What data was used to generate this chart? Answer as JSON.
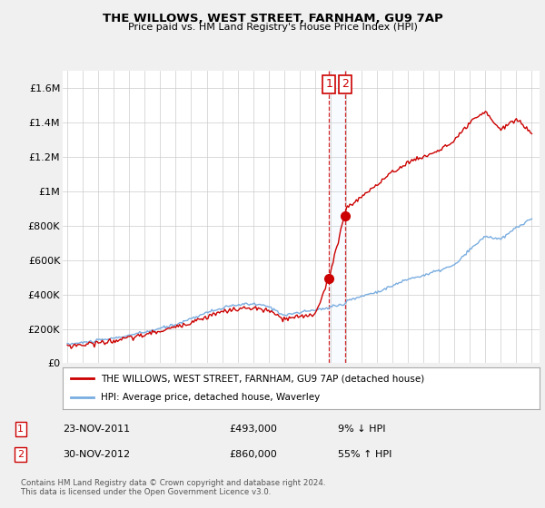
{
  "title": "THE WILLOWS, WEST STREET, FARNHAM, GU9 7AP",
  "subtitle": "Price paid vs. HM Land Registry's House Price Index (HPI)",
  "legend_line1": "THE WILLOWS, WEST STREET, FARNHAM, GU9 7AP (detached house)",
  "legend_line2": "HPI: Average price, detached house, Waverley",
  "transaction1_label": "1",
  "transaction1_date": "23-NOV-2011",
  "transaction1_price": "£493,000",
  "transaction1_hpi": "9% ↓ HPI",
  "transaction2_label": "2",
  "transaction2_date": "30-NOV-2012",
  "transaction2_price": "£860,000",
  "transaction2_hpi": "55% ↑ HPI",
  "footer": "Contains HM Land Registry data © Crown copyright and database right 2024.\nThis data is licensed under the Open Government Licence v3.0.",
  "red_color": "#cc0000",
  "blue_color": "#7aade0",
  "shade_color": "#ddeeff",
  "background_color": "#f0f0f0",
  "plot_bg_color": "#ffffff",
  "ylim": [
    0,
    1700000
  ],
  "yticks": [
    0,
    200000,
    400000,
    600000,
    800000,
    1000000,
    1200000,
    1400000,
    1600000
  ],
  "ytick_labels": [
    "£0",
    "£200K",
    "£400K",
    "£600K",
    "£800K",
    "£1M",
    "£1.2M",
    "£1.4M",
    "£1.6M"
  ],
  "sale1_x": 2011.9,
  "sale1_y_red": 493000,
  "sale2_x": 2012.92,
  "sale2_y_red": 860000,
  "xmin": 1994.7,
  "xmax": 2025.5
}
